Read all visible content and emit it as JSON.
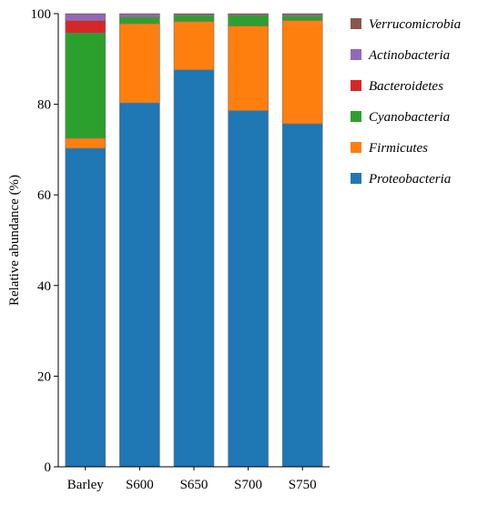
{
  "chart_data": {
    "type": "bar",
    "stacked": true,
    "title": "",
    "xlabel": "",
    "ylabel": "Relative abundance (%)",
    "ylim": [
      0,
      100
    ],
    "yticks": [
      0,
      20,
      40,
      60,
      80,
      100
    ],
    "grid": false,
    "legend_position": "right",
    "categories": [
      "Barley",
      "S600",
      "S650",
      "S700",
      "S750"
    ],
    "series": [
      {
        "name": "Proteobacteria",
        "color": "#1f77b4",
        "values": [
          70.3,
          80.3,
          87.6,
          78.6,
          75.7
        ]
      },
      {
        "name": "Firmicutes",
        "color": "#ff7f0e",
        "values": [
          2.2,
          17.5,
          10.7,
          18.7,
          22.8
        ]
      },
      {
        "name": "Cyanobacteria",
        "color": "#2ca02c",
        "values": [
          23.2,
          1.4,
          1.2,
          2.2,
          0.9
        ]
      },
      {
        "name": "Bacteroidetes",
        "color": "#d62728",
        "values": [
          2.8,
          0.1,
          0.1,
          0.1,
          0.1
        ]
      },
      {
        "name": "Actinobacteria",
        "color": "#9467bd",
        "values": [
          1.3,
          0.5,
          0.1,
          0.1,
          0.2
        ]
      },
      {
        "name": "Verrucomicrobia",
        "color": "#8c564b",
        "values": [
          0.2,
          0.2,
          0.3,
          0.3,
          0.3
        ]
      }
    ]
  }
}
